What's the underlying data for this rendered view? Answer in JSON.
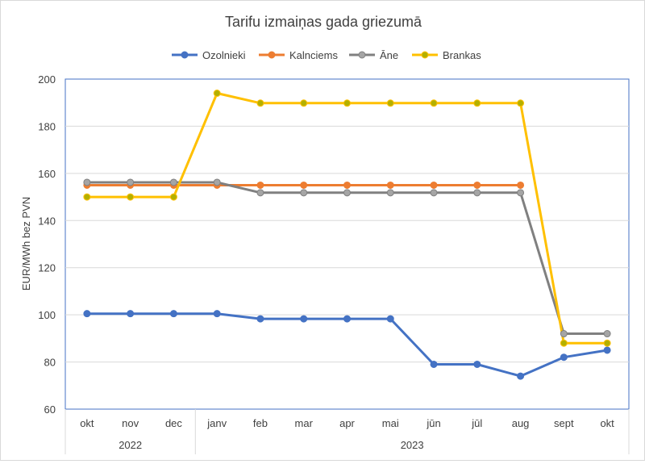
{
  "chart_data": {
    "type": "line",
    "title": "Tarifu izmaiņas gada griezumā",
    "ylabel": "EUR/MWh bez PVN",
    "xlabel": "",
    "ylim": [
      60,
      200
    ],
    "yticks": [
      60,
      80,
      100,
      120,
      140,
      160,
      180,
      200
    ],
    "grid": true,
    "legend_position": "top",
    "categories": [
      "okt",
      "nov",
      "dec",
      "janv",
      "feb",
      "mar",
      "apr",
      "mai",
      "jūn",
      "jūl",
      "aug",
      "sept",
      "okt"
    ],
    "year_groups": [
      {
        "label": "2022",
        "start": 0,
        "end": 2
      },
      {
        "label": "2023",
        "start": 3,
        "end": 12
      }
    ],
    "series": [
      {
        "name": "Ozolnieki",
        "color": "#4472c4",
        "marker_fill": "#4472c4",
        "values": [
          100.5,
          100.5,
          100.5,
          100.5,
          98.3,
          98.3,
          98.3,
          98.3,
          79,
          79,
          74,
          82,
          85
        ]
      },
      {
        "name": "Kalnciems",
        "color": "#ed7d31",
        "marker_fill": "#ed7d31",
        "values": [
          155,
          155,
          155,
          155,
          155,
          155,
          155,
          155,
          155,
          155,
          155,
          null,
          null
        ]
      },
      {
        "name": "Āne",
        "color": "#808080",
        "marker_fill": "#a5a5a5",
        "values": [
          156.2,
          156.2,
          156.2,
          156.2,
          151.8,
          151.8,
          151.8,
          151.8,
          151.8,
          151.8,
          151.8,
          92,
          92
        ]
      },
      {
        "name": "Brankas",
        "color": "#ffc000",
        "marker_fill": "#b4b000",
        "values": [
          150,
          150,
          150,
          194,
          189.8,
          189.8,
          189.8,
          189.8,
          189.8,
          189.8,
          189.8,
          88,
          88
        ]
      }
    ]
  }
}
